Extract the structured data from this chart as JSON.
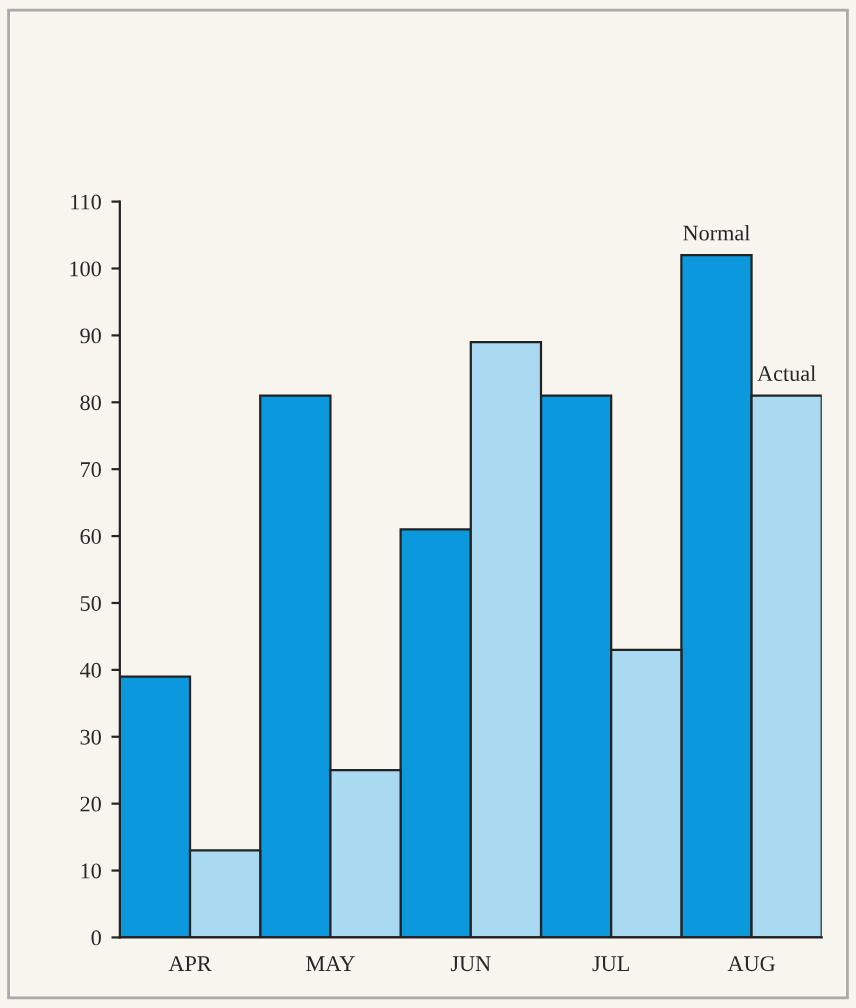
{
  "chart_data": {
    "type": "bar",
    "categories": [
      "APR",
      "MAY",
      "JUN",
      "JUL",
      "AUG"
    ],
    "series": [
      {
        "name": "Normal",
        "color": "#0b98dc",
        "values": [
          39,
          81,
          61,
          81,
          102
        ]
      },
      {
        "name": "Actual",
        "color": "#a9daf2",
        "values": [
          13,
          25,
          89,
          43,
          81
        ]
      }
    ],
    "ylim": [
      0,
      110
    ],
    "yticks": [
      0,
      10,
      20,
      30,
      40,
      50,
      60,
      70,
      80,
      90,
      100,
      110
    ],
    "grid": false,
    "legend": false
  }
}
